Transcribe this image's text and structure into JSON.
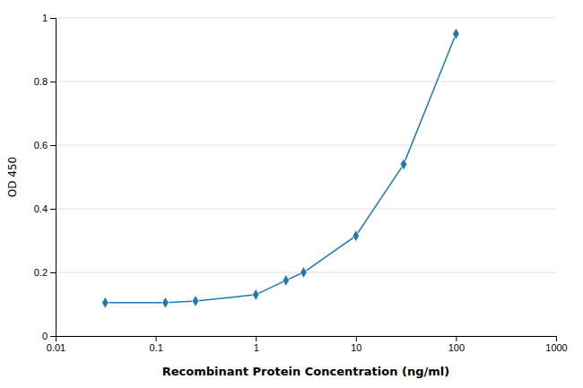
{
  "chart_data": {
    "type": "line",
    "x": [
      0.0313,
      0.125,
      0.25,
      1.0,
      2.0,
      3.0,
      10.0,
      30.0,
      100.0
    ],
    "values": [
      0.105,
      0.105,
      0.11,
      0.13,
      0.175,
      0.2,
      0.315,
      0.54,
      0.95
    ],
    "xlabel": "Recombinant Protein Concentration (ng/ml)",
    "ylabel": "OD 450",
    "xlim": [
      0.01,
      1000
    ],
    "ylim": [
      0,
      1.0
    ],
    "xticks": [
      0.01,
      0.1,
      1,
      10,
      100,
      1000
    ],
    "yticks": [
      0,
      0.2,
      0.4,
      0.6,
      0.8,
      1
    ],
    "log": "x",
    "grid": true,
    "marker": "diamond"
  }
}
